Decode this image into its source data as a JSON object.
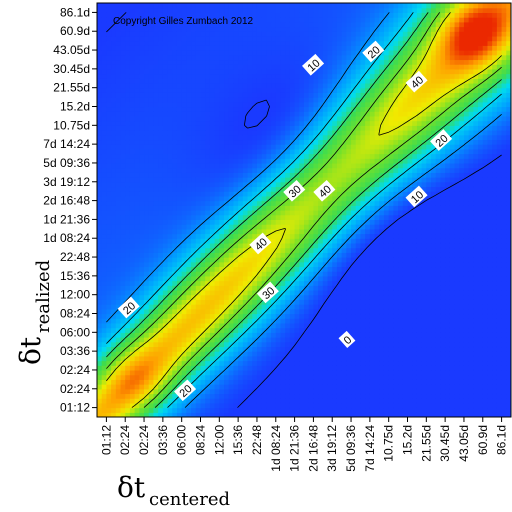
{
  "chart_data": {
    "type": "heatmap",
    "title": "",
    "copyright": "Copyright Gilles Zumbach 2012",
    "xlabel": {
      "symbol": "δt",
      "subscript": "centered"
    },
    "ylabel": {
      "symbol": "δt",
      "subscript": "realized"
    },
    "x_ticks": [
      "01:12",
      "02:24",
      "02:24",
      "03:36",
      "06:00",
      "08:24",
      "12:00",
      "15:36",
      "22:48",
      "1d 08:24",
      "1d 21:36",
      "2d 16:48",
      "3d 19:12",
      "5d 09:36",
      "7d 14:24",
      "10.75d",
      "15.2d",
      "21.55d",
      "30.45d",
      "43.05d",
      "60.9d",
      "86.1d"
    ],
    "y_ticks": [
      "01:12",
      "02:24",
      "02:24",
      "03:36",
      "06:00",
      "08:24",
      "12:00",
      "15:36",
      "22:48",
      "1d 08:24",
      "1d 21:36",
      "2d 16:48",
      "3d 19:12",
      "5d 09:36",
      "7d 14:24",
      "10.75d",
      "15.2d",
      "21.55d",
      "30.45d",
      "43.05d",
      "60.9d",
      "86.1d"
    ],
    "contour_levels": [
      0,
      10,
      20,
      30,
      40,
      50
    ],
    "contour_labels": [
      {
        "text": "10",
        "x": 11.0,
        "y": 18.2
      },
      {
        "text": "20",
        "x": 14.2,
        "y": 18.9
      },
      {
        "text": "40",
        "x": 16.5,
        "y": 17.3
      },
      {
        "text": "20",
        "x": 17.8,
        "y": 14.2
      },
      {
        "text": "10",
        "x": 16.5,
        "y": 11.2
      },
      {
        "text": "30",
        "x": 10.0,
        "y": 11.5
      },
      {
        "text": "40",
        "x": 11.6,
        "y": 11.5
      },
      {
        "text": "40",
        "x": 8.2,
        "y": 8.7
      },
      {
        "text": "30",
        "x": 8.6,
        "y": 6.1
      },
      {
        "text": "0",
        "x": 12.8,
        "y": 3.6
      },
      {
        "text": "20",
        "x": 1.2,
        "y": 5.3
      },
      {
        "text": "20",
        "x": 4.2,
        "y": 0.9
      }
    ],
    "colors": {
      "low": "#1a3aff",
      "mid_low": "#00d8ff",
      "mid": "#33dd33",
      "mid_high": "#ffee00",
      "high": "#ee2200"
    },
    "grid": false,
    "legend": "none"
  }
}
